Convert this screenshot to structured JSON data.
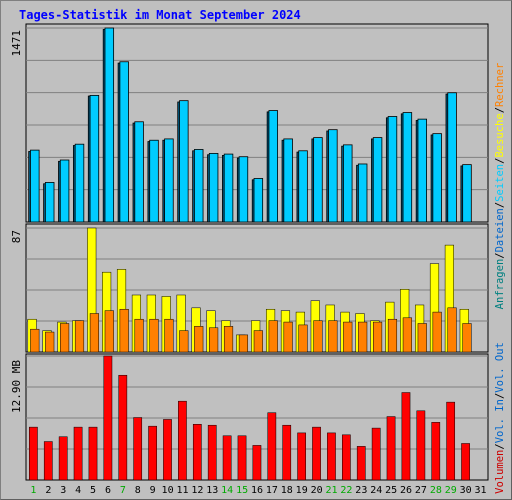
{
  "title": "Tages-Statistik im Monat September 2024",
  "chart_data": [
    {
      "type": "bar",
      "panel": "top",
      "max_label": "1471",
      "ylim": [
        0,
        1471
      ],
      "grid": true,
      "series": [
        {
          "name": "Anfragen",
          "color": "#00ccff",
          "values": [
            545,
            300,
            470,
            590,
            960,
            1471,
            1215,
            760,
            620,
            630,
            920,
            550,
            520,
            515,
            495,
            330,
            845,
            630,
            540,
            640,
            700,
            585,
            440,
            640,
            800,
            830,
            780,
            670,
            980,
            435
          ]
        },
        {
          "name": "Dateien",
          "color": "#0099cc",
          "values": [
            535,
            290,
            460,
            580,
            955,
            1460,
            1205,
            750,
            610,
            620,
            910,
            540,
            510,
            505,
            485,
            320,
            835,
            620,
            530,
            630,
            690,
            575,
            430,
            630,
            790,
            820,
            770,
            660,
            970,
            425
          ]
        }
      ],
      "right_labels": [
        {
          "text": "Anfragen",
          "color": "#008080"
        },
        {
          "text": "/",
          "color": "#000000"
        },
        {
          "text": "Dateien",
          "color": "#0066cc"
        },
        {
          "text": "/",
          "color": "#000000"
        },
        {
          "text": "Seiten",
          "color": "#00ccff"
        },
        {
          "text": "/",
          "color": "#000000"
        },
        {
          "text": "Besuche",
          "color": "#ffff00"
        },
        {
          "text": "/",
          "color": "#000000"
        },
        {
          "text": "Rechner",
          "color": "#ff8000"
        }
      ]
    },
    {
      "type": "bar",
      "panel": "middle",
      "max_label": "87",
      "ylim": [
        0,
        87
      ],
      "grid": true,
      "series": [
        {
          "name": "Besuche",
          "color": "#ffff00",
          "values": [
            23,
            15,
            21,
            22,
            87,
            56,
            58,
            40,
            40,
            39,
            40,
            31,
            29,
            22,
            12,
            22,
            30,
            29,
            28,
            36,
            33,
            28,
            27,
            22,
            35,
            44,
            33,
            62,
            75,
            30
          ]
        },
        {
          "name": "Rechner",
          "color": "#ff8000",
          "values": [
            16,
            14,
            20,
            22,
            27,
            29,
            30,
            23,
            23,
            23,
            15,
            18,
            17,
            18,
            12,
            15,
            22,
            21,
            19,
            22,
            22,
            21,
            21,
            21,
            23,
            24,
            20,
            28,
            31,
            20
          ]
        }
      ]
    },
    {
      "type": "bar",
      "panel": "bottom",
      "max_label": "12.90 MB",
      "ylim": [
        0,
        12.9
      ],
      "grid": true,
      "series": [
        {
          "name": "Volumen",
          "color": "#ff0000",
          "values": [
            5.5,
            4.0,
            4.5,
            5.5,
            5.5,
            12.9,
            10.9,
            6.5,
            5.6,
            6.3,
            8.2,
            5.8,
            5.7,
            4.6,
            4.6,
            3.6,
            7.0,
            5.7,
            4.9,
            5.5,
            4.9,
            4.7,
            3.5,
            5.4,
            6.6,
            9.1,
            7.2,
            6.0,
            8.1,
            3.8
          ]
        }
      ],
      "right_labels": [
        {
          "text": "Volumen",
          "color": "#cc0000"
        },
        {
          "text": "/",
          "color": "#000000"
        },
        {
          "text": "Vol. In",
          "color": "#0066cc"
        },
        {
          "text": "/",
          "color": "#000000"
        },
        {
          "text": "Vol. Out",
          "color": "#0066cc"
        }
      ]
    }
  ],
  "days": [
    "1",
    "2",
    "3",
    "4",
    "5",
    "6",
    "7",
    "8",
    "9",
    "10",
    "11",
    "12",
    "13",
    "14",
    "15",
    "16",
    "17",
    "18",
    "19",
    "20",
    "21",
    "22",
    "23",
    "24",
    "25",
    "26",
    "27",
    "28",
    "29",
    "30",
    "31"
  ],
  "weekend_days": [
    1,
    7,
    14,
    15,
    21,
    22,
    28,
    29
  ],
  "day_colors": {
    "weekday": "#000000",
    "weekend": "#00aa00"
  }
}
